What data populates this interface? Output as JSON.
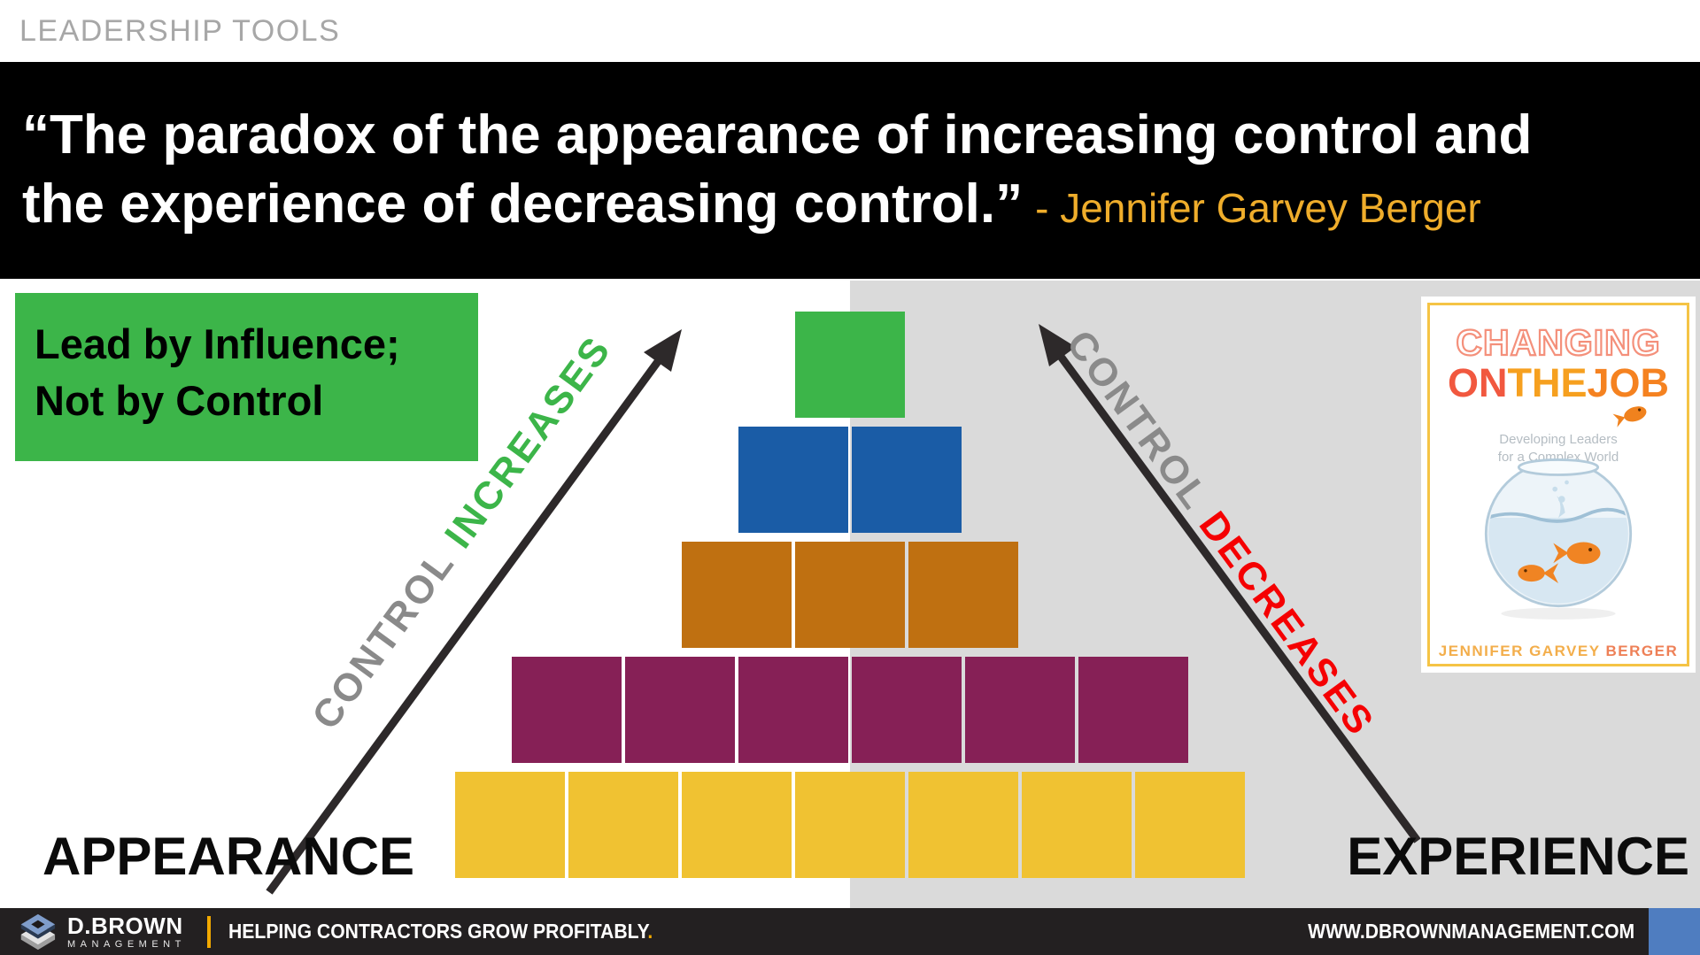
{
  "header": {
    "label": "LEADERSHIP TOOLS"
  },
  "quote": {
    "line1": "“The paradox of the appearance of increasing control and",
    "line2": "the experience of decreasing control.”",
    "attribution": "- Jennifer Garvey Berger"
  },
  "callout": {
    "line1": "Lead by Influence;",
    "line2": "Not by Control"
  },
  "arrows": {
    "left": {
      "word1": "CONTROL",
      "word2": "INCREASES"
    },
    "right": {
      "word1": "CONTROL",
      "word2": "DECREASES"
    }
  },
  "axis_labels": {
    "left": "APPEARANCE",
    "right": "EXPERIENCE"
  },
  "pyramid": {
    "rows": [
      {
        "name": "top",
        "color": "#3CB549",
        "count": 1
      },
      {
        "name": "second",
        "color": "#1A5CA6",
        "count": 2
      },
      {
        "name": "third",
        "color": "#BF7011",
        "count": 3
      },
      {
        "name": "fourth",
        "color": "#862056",
        "count": 6
      },
      {
        "name": "base",
        "color": "#F0C232",
        "count": 7
      }
    ]
  },
  "book": {
    "title_line1": "CHANGING",
    "title2_segments": [
      {
        "text": "ON",
        "color": "#F1583F"
      },
      {
        "text": "THE",
        "color": "#F6A01F"
      },
      {
        "text": "JOB",
        "color": "#F58220"
      }
    ],
    "subtitle_line1": "Developing Leaders",
    "subtitle_line2": "for a Complex World",
    "author_part1": "JENNIFER GARVEY ",
    "author_part2": "BERGER"
  },
  "footer": {
    "brand": "D.BROWN",
    "brand_sub": "MANAGEMENT",
    "tagline": "HELPING CONTRACTORS GROW PROFITABLY",
    "tagline_period": ".",
    "website": "WWW.DBROWNMANAGEMENT.COM"
  },
  "colors": {
    "attribution_gold": "#EFAD2B",
    "callout_green": "#3CB549",
    "block_green": "#3CB549",
    "block_blue": "#1A5CA6",
    "block_orange": "#BF7011",
    "block_purple": "#862056",
    "block_yellow": "#F0C232",
    "gray_panel": "#DADADA",
    "arrow_black": "#2D292A",
    "control_gray": "#8A8A8A",
    "increases_green": "#3CB549",
    "decreases_red": "#F50002",
    "footer_bg": "#232021",
    "footer_gold": "#F2A900",
    "footer_blue": "#4F7DC0"
  }
}
